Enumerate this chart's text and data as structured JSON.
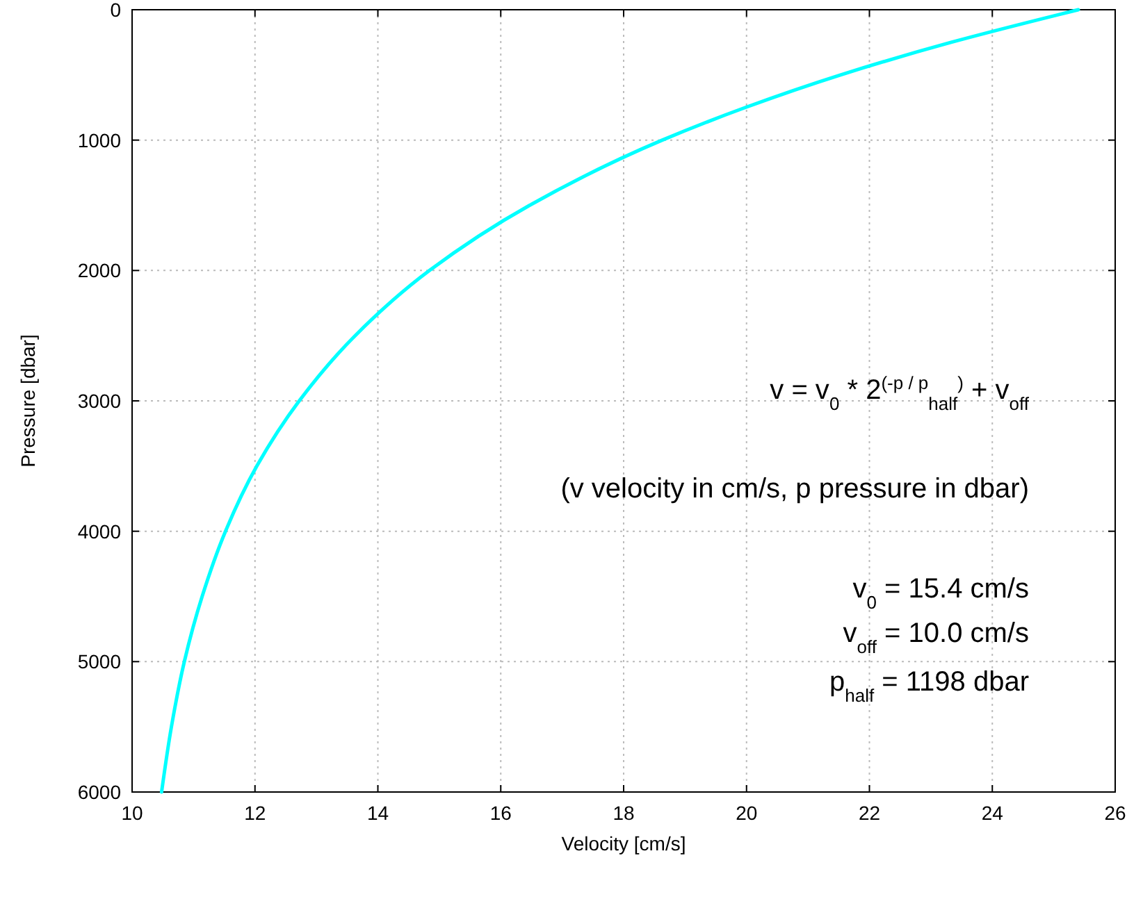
{
  "chart_data": {
    "type": "line",
    "xlabel": "Velocity [cm/s]",
    "ylabel": "Pressure [dbar]",
    "xlim": [
      10,
      26
    ],
    "xticks": [
      10,
      12,
      14,
      16,
      18,
      20,
      22,
      24,
      26
    ],
    "ylim": [
      6000,
      0
    ],
    "yticks": [
      0,
      1000,
      2000,
      3000,
      4000,
      5000,
      6000
    ],
    "grid": true,
    "marker": "none",
    "series": [
      {
        "color": "#00ffff",
        "x": [
          25.4,
          23.33,
          21.53,
          19.98,
          18.63,
          16.47,
          14.84,
          13.63,
          12.72,
          12.03,
          11.52,
          11.14,
          10.85,
          10.64,
          10.48
        ],
        "values": [
          0,
          250,
          500,
          750,
          1000,
          1500,
          2000,
          2500,
          3000,
          3500,
          4000,
          4500,
          5000,
          5500,
          6000
        ]
      }
    ],
    "annotations": [
      "v = v$_{0}$ * 2$^{(-p / p}$$_{half}$$^{)}$ + v$_{off}$",
      "(v velocity in cm/s, p pressure in dbar)",
      "v$_{0}$ = 15.4 cm/s",
      "v$_{off}$ = 10.0 cm/s",
      "p$_{half}$ = 1198 dbar"
    ]
  }
}
